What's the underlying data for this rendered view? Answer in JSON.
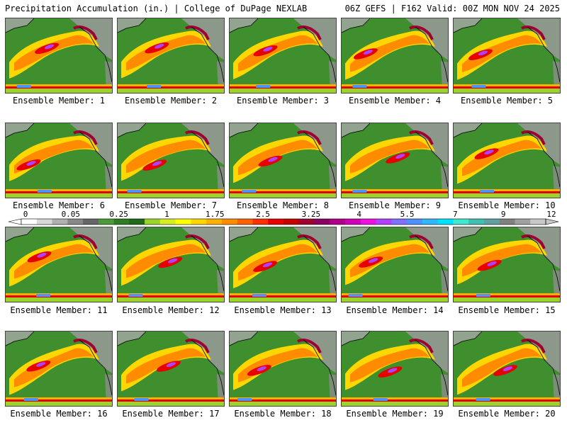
{
  "header": {
    "left_title": "Precipitation Accumulation (in.) | College of DuPage NEXLAB",
    "right_title": "06Z GEFS | F162 Valid: 00Z MON NOV 24 2025"
  },
  "colorbar": {
    "labels": [
      "0",
      "0.05",
      "0.25",
      "1",
      "1.75",
      "2.5",
      "3.25",
      "4",
      "5.5",
      "7",
      "9",
      "12"
    ],
    "colors": [
      "#ffffff",
      "#d8d8d8",
      "#b0b0b0",
      "#888888",
      "#666666",
      "#4a9a3a",
      "#2e7d23",
      "#1f6a1a",
      "#9bd32a",
      "#d6ee20",
      "#ffff00",
      "#ffd700",
      "#ffb000",
      "#ff8c00",
      "#ff6000",
      "#ff3000",
      "#e60000",
      "#c80000",
      "#a00030",
      "#8a0060",
      "#b0008a",
      "#d000b8",
      "#ee10e0",
      "#b040ff",
      "#8070ff",
      "#5090ff",
      "#30b8ff",
      "#00e0ff",
      "#40e8d0",
      "#40c0b0",
      "#60a0a0",
      "#808080",
      "#a0a0a0",
      "#c8c8c8"
    ]
  },
  "members": [
    {
      "label": "Ensemble Member: 1"
    },
    {
      "label": "Ensemble Member: 2"
    },
    {
      "label": "Ensemble Member: 3"
    },
    {
      "label": "Ensemble Member: 4"
    },
    {
      "label": "Ensemble Member: 5"
    },
    {
      "label": "Ensemble Member: 6"
    },
    {
      "label": "Ensemble Member: 7"
    },
    {
      "label": "Ensemble Member: 8"
    },
    {
      "label": "Ensemble Member: 9"
    },
    {
      "label": "Ensemble Member: 10"
    },
    {
      "label": "Ensemble Member: 11"
    },
    {
      "label": "Ensemble Member: 12"
    },
    {
      "label": "Ensemble Member: 13"
    },
    {
      "label": "Ensemble Member: 14"
    },
    {
      "label": "Ensemble Member: 15"
    },
    {
      "label": "Ensemble Member: 16"
    },
    {
      "label": "Ensemble Member: 17"
    },
    {
      "label": "Ensemble Member: 18"
    },
    {
      "label": "Ensemble Member: 19"
    },
    {
      "label": "Ensemble Member: 20"
    }
  ]
}
